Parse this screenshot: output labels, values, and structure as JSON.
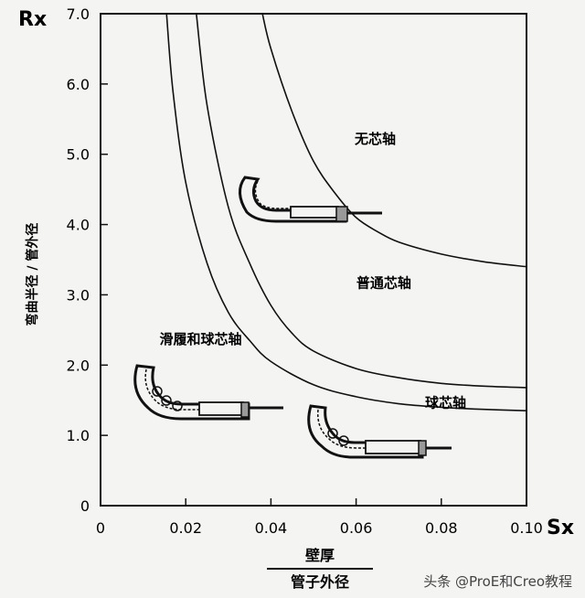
{
  "chart_data": {
    "type": "line",
    "title": "",
    "y_axis": {
      "label": "Rx",
      "description": "弯曲半径 / 管外径",
      "ylim": [
        0,
        7.0
      ],
      "ticks": [
        "0",
        "1.0",
        "2.0",
        "3.0",
        "4.0",
        "5.0",
        "6.0",
        "7.0"
      ]
    },
    "x_axis": {
      "label": "Sx",
      "numerator": "壁厚",
      "denominator": "管子外径",
      "xlim": [
        0,
        0.1
      ],
      "ticks": [
        "0",
        "0.02",
        "0.04",
        "0.06",
        "0.08",
        "0.10"
      ]
    },
    "series": [
      {
        "x": [
          0.0155,
          0.017,
          0.02,
          0.025,
          0.03,
          0.035,
          0.04,
          0.05,
          0.06,
          0.07,
          0.08,
          0.09,
          0.1
        ],
        "y": [
          7.0,
          5.9,
          4.6,
          3.45,
          2.75,
          2.35,
          2.05,
          1.72,
          1.55,
          1.45,
          1.4,
          1.37,
          1.35
        ]
      },
      {
        "x": [
          0.0225,
          0.025,
          0.03,
          0.035,
          0.04,
          0.045,
          0.05,
          0.06,
          0.07,
          0.08,
          0.09,
          0.1
        ],
        "y": [
          7.0,
          5.7,
          4.25,
          3.45,
          2.85,
          2.45,
          2.2,
          1.95,
          1.82,
          1.74,
          1.7,
          1.68
        ]
      },
      {
        "x": [
          0.038,
          0.04,
          0.045,
          0.05,
          0.055,
          0.06,
          0.065,
          0.07,
          0.08,
          0.09,
          0.1
        ],
        "y": [
          7.0,
          6.5,
          5.6,
          4.9,
          4.45,
          4.1,
          3.9,
          3.75,
          3.58,
          3.47,
          3.4
        ]
      }
    ],
    "region_labels": [
      {
        "text": "无芯轴",
        "x": 0.0645,
        "y": 5.15
      },
      {
        "text": "普通芯轴",
        "x": 0.0665,
        "y": 3.1
      },
      {
        "text": "滑履和球芯轴",
        "x": 0.0235,
        "y": 2.3
      },
      {
        "text": "球芯轴",
        "x": 0.081,
        "y": 1.4
      }
    ],
    "grid": false,
    "legend": "none"
  },
  "watermark": "头条 @ProE和Creo教程",
  "colors": {
    "line": "#111111",
    "background": "#f4f4f2"
  },
  "icons": [
    "bent-tube-no-mandrel-icon",
    "bent-tube-shoe-ball-mandrel-icon",
    "bent-tube-ball-mandrel-icon"
  ]
}
